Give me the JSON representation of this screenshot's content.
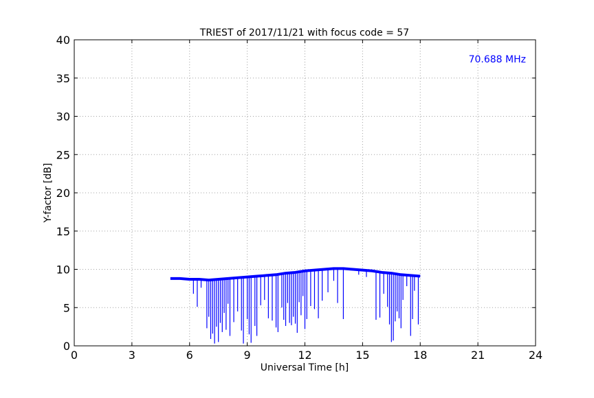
{
  "chart_data": {
    "type": "line",
    "title": "TRIEST of 2017/11/21 with focus code = 57",
    "xlabel": "Universal Time [h]",
    "ylabel": "Y-factor [dB]",
    "annotation": "70.688 MHz",
    "xlim": [
      0,
      24
    ],
    "ylim": [
      0,
      40
    ],
    "xticks": [
      0,
      3,
      6,
      9,
      12,
      15,
      18,
      21,
      24
    ],
    "yticks": [
      0,
      5,
      10,
      15,
      20,
      25,
      30,
      35,
      40
    ],
    "grid": true,
    "line_color": "#0000ff",
    "annotation_color": "#0000ff",
    "baseline": {
      "x": [
        5.0,
        5.5,
        6.0,
        6.5,
        7.0,
        7.5,
        8.0,
        8.5,
        9.0,
        9.5,
        10.0,
        10.5,
        11.0,
        11.5,
        12.0,
        12.5,
        13.0,
        13.5,
        14.0,
        14.5,
        15.0,
        15.5,
        16.0,
        16.5,
        17.0,
        17.5,
        18.0
      ],
      "y": [
        8.8,
        8.8,
        8.7,
        8.7,
        8.6,
        8.7,
        8.8,
        8.9,
        9.0,
        9.1,
        9.2,
        9.3,
        9.5,
        9.6,
        9.8,
        9.9,
        10.0,
        10.1,
        10.1,
        10.0,
        9.9,
        9.8,
        9.6,
        9.5,
        9.3,
        9.2,
        9.1
      ]
    },
    "dips": [
      {
        "x": 6.2,
        "y": 6.8
      },
      {
        "x": 6.4,
        "y": 5.1
      },
      {
        "x": 6.6,
        "y": 7.6
      },
      {
        "x": 6.9,
        "y": 2.3
      },
      {
        "x": 7.0,
        "y": 3.8
      },
      {
        "x": 7.1,
        "y": 0.9
      },
      {
        "x": 7.2,
        "y": 1.6
      },
      {
        "x": 7.3,
        "y": 0.3
      },
      {
        "x": 7.4,
        "y": 2.5
      },
      {
        "x": 7.5,
        "y": 0.5
      },
      {
        "x": 7.6,
        "y": 3.0
      },
      {
        "x": 7.7,
        "y": 1.8
      },
      {
        "x": 7.8,
        "y": 4.3
      },
      {
        "x": 7.9,
        "y": 2.1
      },
      {
        "x": 8.0,
        "y": 5.5
      },
      {
        "x": 8.1,
        "y": 1.3
      },
      {
        "x": 8.3,
        "y": 3.1
      },
      {
        "x": 8.5,
        "y": 4.5
      },
      {
        "x": 8.7,
        "y": 2.0
      },
      {
        "x": 8.8,
        "y": 0.3
      },
      {
        "x": 9.0,
        "y": 3.5
      },
      {
        "x": 9.1,
        "y": 1.5
      },
      {
        "x": 9.2,
        "y": 0.4
      },
      {
        "x": 9.4,
        "y": 2.6
      },
      {
        "x": 9.5,
        "y": 1.3
      },
      {
        "x": 9.7,
        "y": 5.3
      },
      {
        "x": 9.9,
        "y": 6.0
      },
      {
        "x": 10.1,
        "y": 3.6
      },
      {
        "x": 10.3,
        "y": 3.3
      },
      {
        "x": 10.5,
        "y": 2.4
      },
      {
        "x": 10.6,
        "y": 1.8
      },
      {
        "x": 10.8,
        "y": 5.0
      },
      {
        "x": 10.9,
        "y": 3.4
      },
      {
        "x": 11.0,
        "y": 2.6
      },
      {
        "x": 11.1,
        "y": 5.6
      },
      {
        "x": 11.2,
        "y": 3.0
      },
      {
        "x": 11.3,
        "y": 2.7
      },
      {
        "x": 11.4,
        "y": 3.8
      },
      {
        "x": 11.5,
        "y": 2.9
      },
      {
        "x": 11.6,
        "y": 1.7
      },
      {
        "x": 11.7,
        "y": 5.7
      },
      {
        "x": 11.8,
        "y": 4.0
      },
      {
        "x": 11.9,
        "y": 6.5
      },
      {
        "x": 12.0,
        "y": 2.2
      },
      {
        "x": 12.1,
        "y": 3.5
      },
      {
        "x": 12.3,
        "y": 5.2
      },
      {
        "x": 12.5,
        "y": 4.8
      },
      {
        "x": 12.7,
        "y": 3.6
      },
      {
        "x": 12.9,
        "y": 5.9
      },
      {
        "x": 13.2,
        "y": 7.0
      },
      {
        "x": 13.5,
        "y": 8.5
      },
      {
        "x": 13.7,
        "y": 5.6
      },
      {
        "x": 14.0,
        "y": 3.5
      },
      {
        "x": 14.8,
        "y": 9.3
      },
      {
        "x": 15.2,
        "y": 9.0
      },
      {
        "x": 15.7,
        "y": 3.4
      },
      {
        "x": 15.9,
        "y": 3.7
      },
      {
        "x": 16.1,
        "y": 6.8
      },
      {
        "x": 16.3,
        "y": 5.1
      },
      {
        "x": 16.4,
        "y": 2.8
      },
      {
        "x": 16.5,
        "y": 0.5
      },
      {
        "x": 16.6,
        "y": 0.7
      },
      {
        "x": 16.7,
        "y": 3.2
      },
      {
        "x": 16.8,
        "y": 4.5
      },
      {
        "x": 16.9,
        "y": 3.6
      },
      {
        "x": 17.0,
        "y": 2.3
      },
      {
        "x": 17.1,
        "y": 6.0
      },
      {
        "x": 17.3,
        "y": 7.8
      },
      {
        "x": 17.5,
        "y": 1.3
      },
      {
        "x": 17.6,
        "y": 3.5
      },
      {
        "x": 17.7,
        "y": 7.2
      },
      {
        "x": 17.9,
        "y": 2.8
      }
    ]
  }
}
